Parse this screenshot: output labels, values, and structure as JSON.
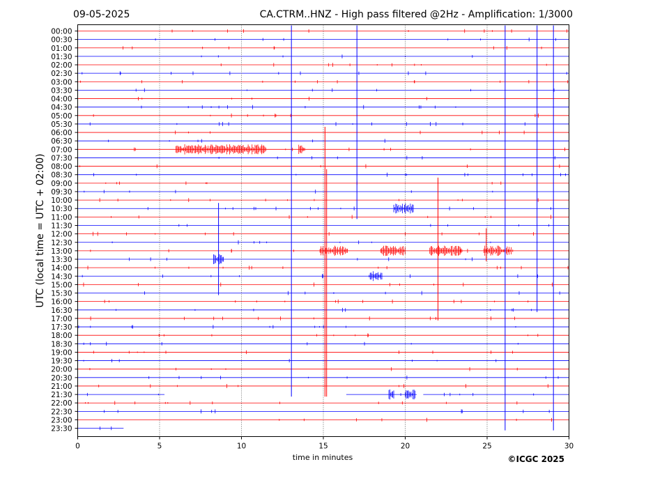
{
  "header": {
    "date": "09-05-2025",
    "title": "CA.CTRM..HNZ - High pass filtered @2Hz - Amplification: 1/3000"
  },
  "footer": {
    "copyright": "©ICGC 2025"
  },
  "chart_data": {
    "type": "line",
    "title": "CA.CTRM..HNZ - High pass filtered @2Hz - Amplification: 1/3000",
    "date": "09-05-2025",
    "xlabel": "time in minutes",
    "ylabel": "UTC (local time = UTC + 02:00)",
    "xlim": [
      0,
      30
    ],
    "x_ticks": [
      0,
      5,
      10,
      15,
      20,
      25,
      30
    ],
    "grid": "vertical dotted at every 5 minutes",
    "row_labels": [
      "00:00",
      "00:30",
      "01:00",
      "01:30",
      "02:00",
      "02:30",
      "03:00",
      "03:30",
      "04:00",
      "04:30",
      "05:00",
      "05:30",
      "06:00",
      "06:30",
      "07:00",
      "07:30",
      "08:00",
      "08:30",
      "09:00",
      "09:30",
      "10:00",
      "10:30",
      "11:00",
      "11:30",
      "12:00",
      "12:30",
      "13:00",
      "13:30",
      "14:00",
      "14:30",
      "15:00",
      "15:30",
      "16:00",
      "16:30",
      "17:00",
      "17:30",
      "18:00",
      "18:30",
      "19:00",
      "19:30",
      "20:00",
      "20:30",
      "21:00",
      "21:30",
      "22:00",
      "22:30",
      "23:00",
      "23:30"
    ],
    "trace_colors": [
      "#ff0000",
      "#0000ff"
    ],
    "spikes": [
      {
        "row": "00:00",
        "minute": 13.05,
        "to_row": "21:30",
        "color": "#0000ff"
      },
      {
        "row": "00:00",
        "minute": 17.05,
        "to_row": "11:00",
        "color": "#0000ff"
      },
      {
        "row": "00:00",
        "minute": 26.1,
        "to_row": "23:30",
        "color": "#0000ff"
      },
      {
        "row": "00:00",
        "minute": 28.05,
        "to_row": "16:30",
        "color": "#0000ff"
      },
      {
        "row": "00:00",
        "minute": 29.05,
        "to_row": "23:30",
        "color": "#0000ff"
      },
      {
        "row": "06:00",
        "minute": 15.1,
        "to_row": "21:30",
        "color": "#ff0000"
      },
      {
        "row": "08:30",
        "minute": 15.2,
        "to_row": "21:30",
        "color": "#ff0000"
      },
      {
        "row": "09:00",
        "minute": 22.0,
        "to_row": "17:00",
        "color": "#ff0000"
      },
      {
        "row": "10:30",
        "minute": 8.6,
        "to_row": "15:30",
        "color": "#0000ff"
      },
      {
        "row": "12:00",
        "minute": 24.95,
        "to_row": "13:30",
        "color": "#ff0000"
      }
    ],
    "bursts": [
      {
        "row": "07:00",
        "from": 6.0,
        "to": 11.5,
        "color": "#ff0000"
      },
      {
        "row": "07:00",
        "from": 13.5,
        "to": 13.9,
        "color": "#ff0000"
      },
      {
        "row": "13:00",
        "from": 14.8,
        "to": 16.5,
        "color": "#ff0000"
      },
      {
        "row": "13:00",
        "from": 18.5,
        "to": 20.0,
        "color": "#ff0000"
      },
      {
        "row": "13:00",
        "from": 21.5,
        "to": 23.5,
        "color": "#ff0000"
      },
      {
        "row": "13:00",
        "from": 24.8,
        "to": 26.5,
        "color": "#ff0000"
      },
      {
        "row": "13:30",
        "from": 8.3,
        "to": 8.9,
        "color": "#0000ff"
      },
      {
        "row": "14:30",
        "from": 17.8,
        "to": 18.6,
        "color": "#0000ff"
      },
      {
        "row": "10:30",
        "from": 19.3,
        "to": 20.5,
        "color": "#0000ff"
      },
      {
        "row": "21:30",
        "from": 19.0,
        "to": 19.3,
        "color": "#0000ff"
      },
      {
        "row": "21:30",
        "from": 20.0,
        "to": 20.6,
        "color": "#0000ff"
      }
    ],
    "gaps": [
      {
        "row": "21:30",
        "from": 5.3,
        "to": 16.4
      },
      {
        "row": "21:30",
        "from": 20.7,
        "to": 21.1
      },
      {
        "row": "23:30",
        "from": 2.8,
        "to": 30.0
      }
    ]
  }
}
